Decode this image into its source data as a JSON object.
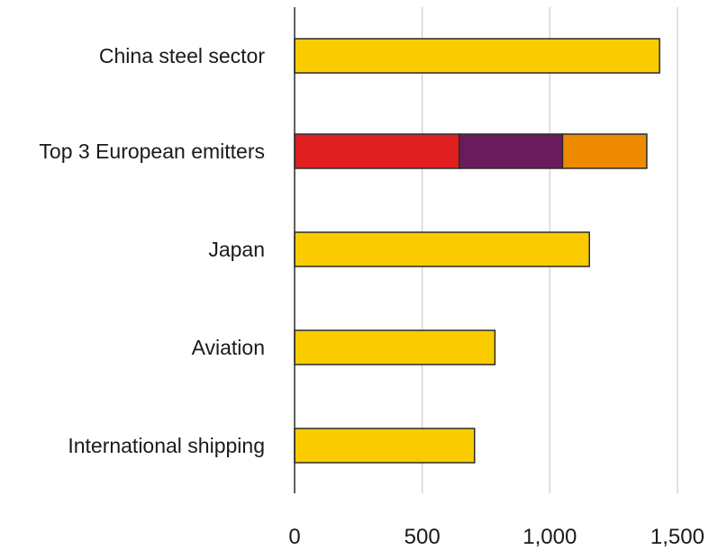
{
  "chart_data": {
    "type": "bar",
    "orientation": "horizontal",
    "stacked": true,
    "categories": [
      "China steel sector",
      "Top 3 European emitters",
      "Japan",
      "Aviation",
      "International shipping"
    ],
    "series": [
      {
        "values": [
          1430,
          645,
          1155,
          785,
          705
        ],
        "color": "#FACC00"
      },
      {
        "values": [
          0,
          405,
          0,
          0,
          0
        ],
        "color": "#6A1B5C"
      },
      {
        "values": [
          0,
          330,
          0,
          0,
          0
        ],
        "color": "#EE8A00"
      }
    ],
    "segment_colors": [
      [
        "#FACC00"
      ],
      [
        "#E02020",
        "#6A1B5C",
        "#EE8A00"
      ],
      [
        "#FACC00"
      ],
      [
        "#FACC00"
      ],
      [
        "#FACC00"
      ]
    ],
    "xlim": [
      0,
      1500
    ],
    "xticks": [
      0,
      500,
      1000,
      1500
    ],
    "xtick_labels": [
      "0",
      "500",
      "1,000",
      "1,500"
    ],
    "grid": "vertical",
    "title": "",
    "xlabel": "",
    "ylabel": ""
  }
}
